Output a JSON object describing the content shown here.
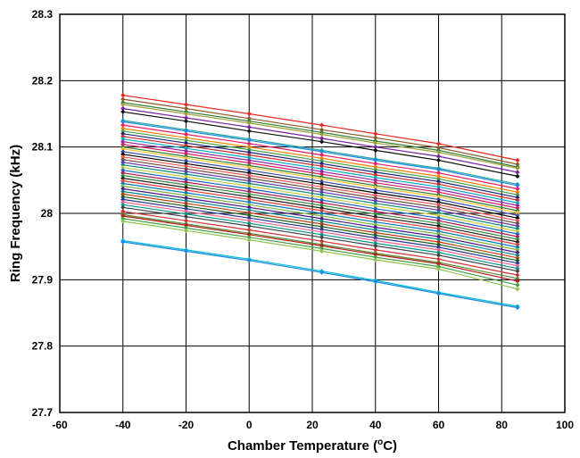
{
  "chart_data": {
    "type": "line",
    "xlabel_main": "Chamber Temperature (",
    "xlabel_sup": "o",
    "xlabel_end": "C)",
    "ylabel": "Ring Frequency (kHz)",
    "xlim": [
      -60,
      100
    ],
    "ylim": [
      27.7,
      28.3
    ],
    "x_ticks": [
      "-60",
      "-40",
      "-20",
      "0",
      "20",
      "40",
      "60",
      "80",
      "100"
    ],
    "y_ticks": [
      "27.7",
      "27.8",
      "27.9",
      "28",
      "28.1",
      "28.2",
      "28.3"
    ],
    "grid": true,
    "x": [
      -40,
      -20,
      0,
      23,
      40,
      60,
      85
    ],
    "series": [
      {
        "color": "#e8261c",
        "values": [
          28.178,
          28.164,
          28.15,
          28.133,
          28.12,
          28.105,
          28.08
        ]
      },
      {
        "color": "#8b5a2b",
        "values": [
          28.172,
          28.158,
          28.143,
          28.126,
          28.114,
          28.099,
          28.074
        ]
      },
      {
        "color": "#2e7d32",
        "values": [
          28.167,
          28.153,
          28.139,
          28.122,
          28.109,
          28.095,
          28.07
        ]
      },
      {
        "color": "#9e9e3c",
        "values": [
          28.164,
          28.15,
          28.136,
          28.119,
          28.106,
          28.092,
          28.068
        ]
      },
      {
        "color": "#7b1fa2",
        "values": [
          28.158,
          28.144,
          28.13,
          28.113,
          28.1,
          28.086,
          28.062
        ]
      },
      {
        "color": "#111111",
        "values": [
          28.153,
          28.139,
          28.124,
          28.108,
          28.095,
          28.08,
          28.056
        ]
      },
      {
        "color": "#26a69a",
        "values": [
          28.14,
          28.126,
          28.112,
          28.095,
          28.082,
          28.068,
          28.044
        ]
      },
      {
        "color": "#1e88e5",
        "values": [
          28.138,
          28.124,
          28.11,
          28.093,
          28.08,
          28.066,
          28.042
        ]
      },
      {
        "color": "#e91e63",
        "values": [
          28.133,
          28.119,
          28.105,
          28.088,
          28.075,
          28.061,
          28.037
        ]
      },
      {
        "color": "#f57c00",
        "values": [
          28.128,
          28.114,
          28.1,
          28.083,
          28.07,
          28.056,
          28.032
        ]
      },
      {
        "color": "#43a047",
        "values": [
          28.124,
          28.11,
          28.096,
          28.079,
          28.066,
          28.052,
          28.028
        ]
      },
      {
        "color": "#1a237e",
        "values": [
          28.12,
          28.106,
          28.092,
          28.075,
          28.062,
          28.048,
          28.024
        ]
      },
      {
        "color": "#c62828",
        "values": [
          28.116,
          28.102,
          28.088,
          28.071,
          28.058,
          28.044,
          28.02
        ]
      },
      {
        "color": "#00acc1",
        "values": [
          28.112,
          28.098,
          28.084,
          28.067,
          28.054,
          28.04,
          28.016
        ]
      },
      {
        "color": "#8e24aa",
        "values": [
          28.108,
          28.094,
          28.08,
          28.063,
          28.05,
          28.036,
          28.012
        ]
      },
      {
        "color": "#d81b60",
        "values": [
          28.104,
          28.09,
          28.076,
          28.059,
          28.046,
          28.032,
          28.008
        ]
      },
      {
        "color": "#2e7d32",
        "values": [
          28.1,
          28.086,
          28.072,
          28.055,
          28.042,
          28.028,
          28.004
        ]
      },
      {
        "color": "#fbc02d",
        "values": [
          28.097,
          28.083,
          28.069,
          28.052,
          28.039,
          28.025,
          28.001
        ]
      },
      {
        "color": "#3949ab",
        "values": [
          28.093,
          28.079,
          28.065,
          28.048,
          28.035,
          28.021,
          27.997
        ]
      },
      {
        "color": "#000000",
        "values": [
          28.089,
          28.075,
          28.061,
          28.044,
          28.031,
          28.017,
          27.993
        ]
      },
      {
        "color": "#ef5350",
        "values": [
          28.085,
          28.071,
          28.057,
          28.04,
          28.027,
          28.013,
          27.989
        ]
      },
      {
        "color": "#6d4c41",
        "values": [
          28.081,
          28.067,
          28.053,
          28.036,
          28.023,
          28.009,
          27.985
        ]
      },
      {
        "color": "#5e35b1",
        "values": [
          28.077,
          28.063,
          28.049,
          28.032,
          28.019,
          28.005,
          27.981
        ]
      },
      {
        "color": "#00897b",
        "values": [
          28.073,
          28.059,
          28.045,
          28.028,
          28.015,
          28.001,
          27.977
        ]
      },
      {
        "color": "#c0ca33",
        "values": [
          28.069,
          28.055,
          28.041,
          28.024,
          28.011,
          27.997,
          27.973
        ]
      },
      {
        "color": "#1565c0",
        "values": [
          28.065,
          28.051,
          28.037,
          28.02,
          28.007,
          27.993,
          27.969
        ]
      },
      {
        "color": "#ad1457",
        "values": [
          28.061,
          28.047,
          28.033,
          28.016,
          28.003,
          27.989,
          27.965
        ]
      },
      {
        "color": "#388e3c",
        "values": [
          28.057,
          28.043,
          28.029,
          28.012,
          27.999,
          27.985,
          27.961
        ]
      },
      {
        "color": "#212121",
        "values": [
          28.053,
          28.039,
          28.025,
          28.008,
          27.995,
          27.981,
          27.957
        ]
      },
      {
        "color": "#e53935",
        "values": [
          28.049,
          28.035,
          28.021,
          28.004,
          27.991,
          27.977,
          27.953
        ]
      },
      {
        "color": "#0277bd",
        "values": [
          28.045,
          28.031,
          28.017,
          28.0,
          27.987,
          27.973,
          27.949
        ]
      },
      {
        "color": "#7cb342",
        "values": [
          28.041,
          28.027,
          28.013,
          27.996,
          27.983,
          27.969,
          27.945
        ]
      },
      {
        "color": "#4a148c",
        "values": [
          28.037,
          28.023,
          28.009,
          27.992,
          27.979,
          27.965,
          27.941
        ]
      },
      {
        "color": "#00838f",
        "values": [
          28.033,
          28.019,
          28.005,
          27.988,
          27.975,
          27.961,
          27.937
        ]
      },
      {
        "color": "#bf360c",
        "values": [
          28.029,
          28.015,
          28.001,
          27.984,
          27.971,
          27.957,
          27.933
        ]
      },
      {
        "color": "#1b5e20",
        "values": [
          28.025,
          28.011,
          27.997,
          27.98,
          27.967,
          27.953,
          27.929
        ]
      },
      {
        "color": "#283593",
        "values": [
          28.021,
          28.007,
          27.993,
          27.976,
          27.963,
          27.949,
          27.925
        ]
      },
      {
        "color": "#f06292",
        "values": [
          28.017,
          28.003,
          27.989,
          27.972,
          27.959,
          27.945,
          27.921
        ]
      },
      {
        "color": "#009688",
        "values": [
          28.013,
          27.999,
          27.985,
          27.968,
          27.955,
          27.941,
          27.917
        ]
      },
      {
        "color": "#424242",
        "values": [
          28.009,
          27.995,
          27.981,
          27.964,
          27.951,
          27.937,
          27.913
        ]
      },
      {
        "color": "#d32f2f",
        "values": [
          28.003,
          27.989,
          27.975,
          27.958,
          27.945,
          27.931,
          27.907
        ]
      },
      {
        "color": "#558b2f",
        "values": [
          27.998,
          27.984,
          27.97,
          27.953,
          27.94,
          27.926,
          27.902
        ]
      },
      {
        "color": "#b71c1c",
        "values": [
          27.996,
          27.982,
          27.968,
          27.951,
          27.938,
          27.924,
          27.898
        ]
      },
      {
        "color": "#43a047",
        "values": [
          27.992,
          27.978,
          27.964,
          27.947,
          27.934,
          27.92,
          27.892
        ]
      },
      {
        "color": "#8bc34a",
        "values": [
          27.988,
          27.974,
          27.96,
          27.943,
          27.93,
          27.916,
          27.886
        ]
      },
      {
        "color": "#00bcd4",
        "values": [
          27.959,
          27.945,
          27.931,
          27.913,
          27.899,
          27.881,
          27.86
        ]
      },
      {
        "color": "#1e88e5",
        "values": [
          27.957,
          27.943,
          27.929,
          27.911,
          27.897,
          27.879,
          27.858
        ]
      }
    ]
  }
}
